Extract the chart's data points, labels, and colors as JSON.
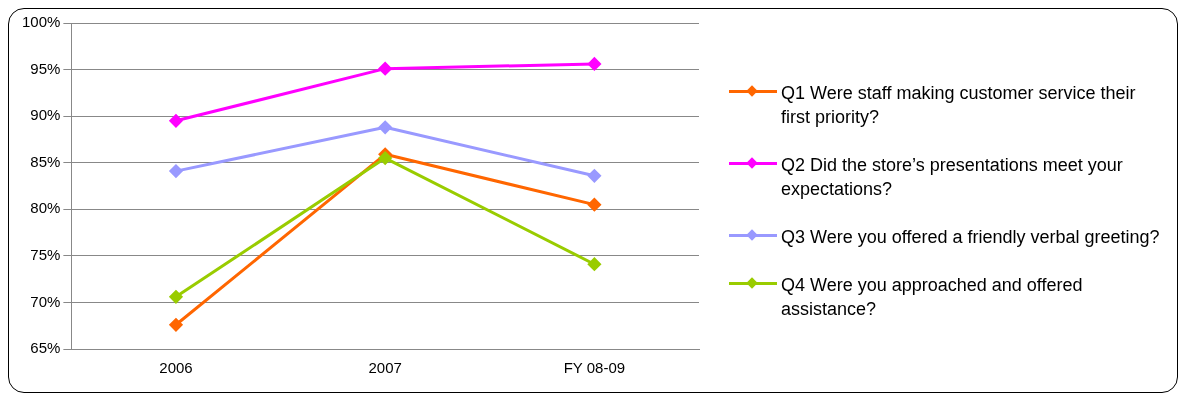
{
  "chart_data": {
    "type": "line",
    "categories": [
      "2006",
      "2007",
      "FY 08-09"
    ],
    "series": [
      {
        "name": "Q1 Were staff making customer service their first priority?",
        "color": "#ff6600",
        "values": [
          67.6,
          85.9,
          80.5
        ]
      },
      {
        "name": "Q2 Did the store’s presentations meet your expectations?",
        "color": "#ff00ff",
        "values": [
          89.5,
          95.1,
          95.6
        ]
      },
      {
        "name": "Q3 Were you offered a friendly verbal greeting?",
        "color": "#9999ff",
        "values": [
          84.1,
          88.8,
          83.6
        ]
      },
      {
        "name": "Q4 Were you approached and offered assistance?",
        "color": "#99cc00",
        "values": [
          70.6,
          85.5,
          74.1
        ]
      }
    ],
    "ylim": [
      65,
      100
    ],
    "yticks": [
      {
        "value": 65,
        "label": "65%"
      },
      {
        "value": 70,
        "label": "70%"
      },
      {
        "value": 75,
        "label": "75%"
      },
      {
        "value": 80,
        "label": "80%"
      },
      {
        "value": 85,
        "label": "85%"
      },
      {
        "value": 90,
        "label": "90%"
      },
      {
        "value": 95,
        "label": "95%"
      },
      {
        "value": 100,
        "label": "100%"
      }
    ],
    "grid": "y",
    "legend": "right",
    "marker": "diamond",
    "line_style": "solid"
  }
}
